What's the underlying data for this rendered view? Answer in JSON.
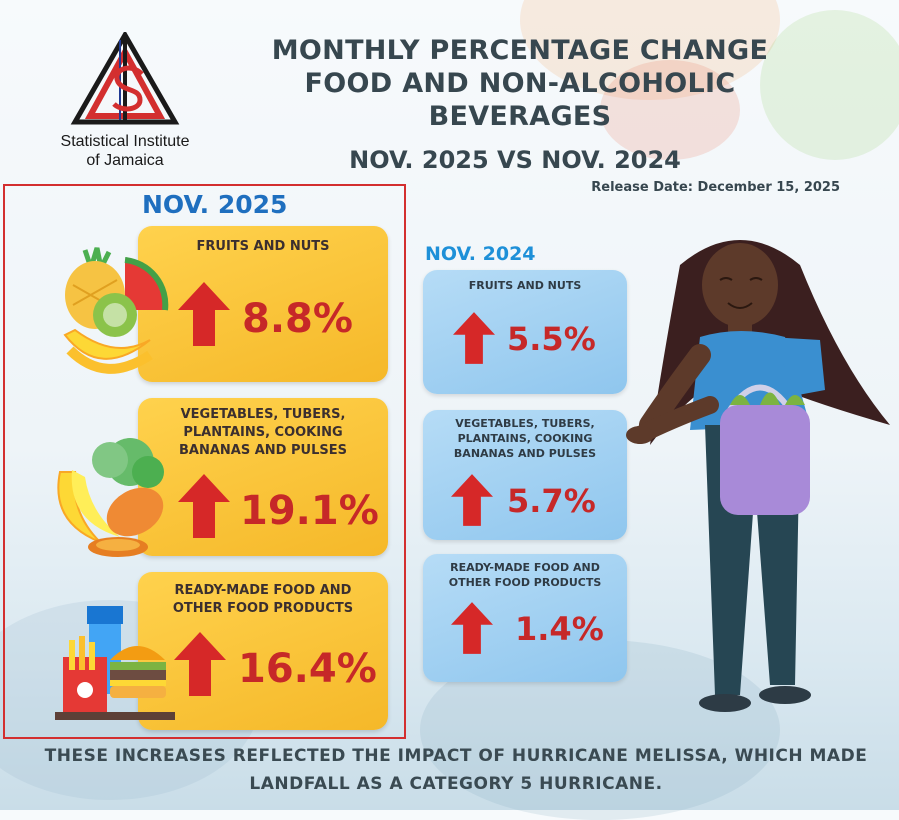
{
  "logo": {
    "org_line1": "Statistical Institute",
    "org_line2": "of Jamaica"
  },
  "title": {
    "line1": "MONTHLY PERCENTAGE CHANGE",
    "line2": "FOOD AND NON-ALCOHOLIC",
    "line3": "BEVERAGES"
  },
  "subtitle": "NOV. 2025 VS NOV. 2024",
  "release": "Release Date: December 15, 2025",
  "year_2025": {
    "heading": "NOV. 2025",
    "items": [
      {
        "label": "FRUITS AND NUTS",
        "value": "8.8%",
        "direction": "up"
      },
      {
        "label_l1": "VEGETABLES, TUBERS,",
        "label_l2": "PLANTAINS, COOKING",
        "label_l3": "BANANAS AND PULSES",
        "value": "19.1%",
        "direction": "up"
      },
      {
        "label_l1": "READY-MADE FOOD AND",
        "label_l2": "OTHER FOOD PRODUCTS",
        "value": "16.4%",
        "direction": "up"
      }
    ]
  },
  "year_2024": {
    "heading": "NOV. 2024",
    "items": [
      {
        "label": "FRUITS AND NUTS",
        "value": "5.5%",
        "direction": "up"
      },
      {
        "label_l1": "VEGETABLES, TUBERS,",
        "label_l2": "PLANTAINS, COOKING",
        "label_l3": "BANANAS AND PULSES",
        "value": "5.7%",
        "direction": "up"
      },
      {
        "label_l1": "READY-MADE FOOD AND",
        "label_l2": "OTHER FOOD PRODUCTS",
        "value": "1.4%",
        "direction": "up"
      }
    ]
  },
  "footer": {
    "line1": "THESE INCREASES REFLECTED THE IMPACT OF HURRICANE MELISSA, WHICH MADE",
    "line2": "LANDFALL AS A CATEGORY 5 HURRICANE."
  },
  "colors": {
    "accent_red": "#c62828",
    "gold": "#f5b829",
    "light_blue": "#8fc6ee",
    "heading_blue": "#1f6fbf",
    "title_gray": "#37474f"
  }
}
